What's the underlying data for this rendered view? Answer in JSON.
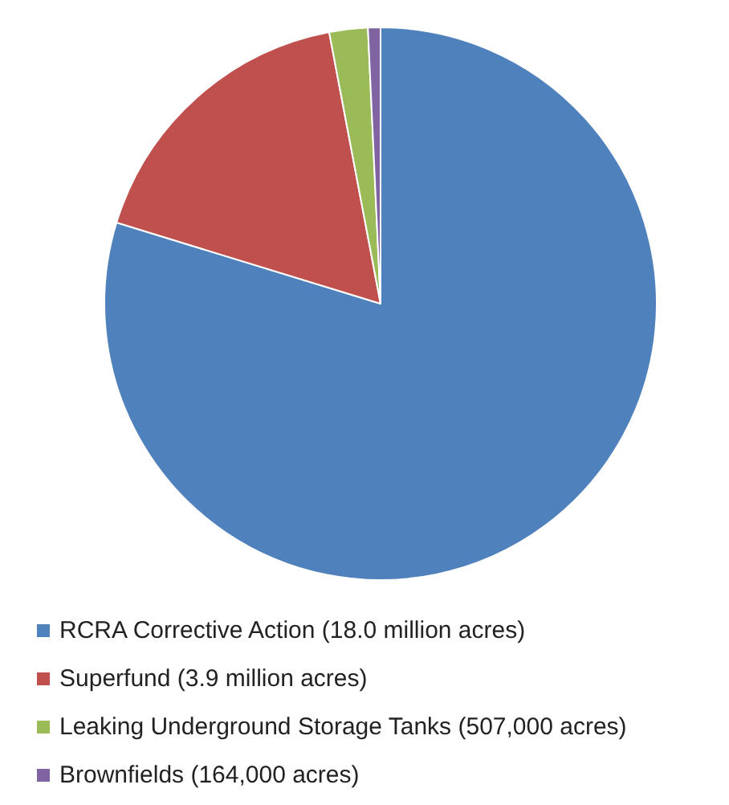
{
  "chart_data": {
    "type": "pie",
    "categories": [
      "RCRA Corrective Action (18.0 million acres)",
      "Superfund (3.9 million acres)",
      "Leaking Underground Storage Tanks (507,000 acres)",
      "Brownfields (164,000 acres)"
    ],
    "values": [
      79.74,
      17.28,
      2.25,
      0.73
    ],
    "colors": [
      "#4f81bd",
      "#c0504d",
      "#9bbb59",
      "#8064a2"
    ],
    "legend": "bottom"
  }
}
